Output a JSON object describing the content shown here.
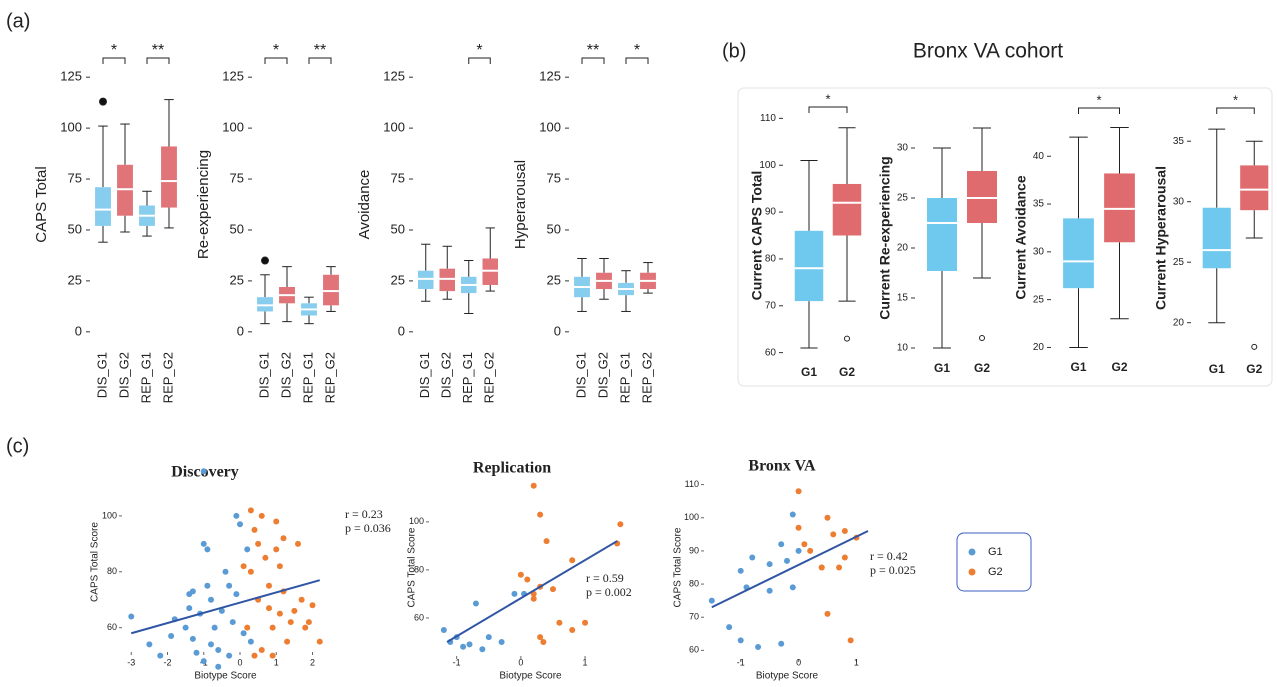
{
  "panels": [
    {
      "label": "(a)"
    },
    {
      "label": "(b)",
      "title": "Bronx VA cohort"
    },
    {
      "label": "(c)"
    }
  ],
  "chart_data": [
    {
      "type": "box",
      "ylabel": "CAPS Total",
      "categories": [
        "DIS_G1",
        "DIS_G2",
        "REP_G1",
        "REP_G2"
      ],
      "colors": [
        "#87cdee",
        "#e07478",
        "#87cdee",
        "#e07478"
      ],
      "boxes": [
        {
          "min": 44,
          "q1": 52,
          "median": 60,
          "q3": 71,
          "max": 101,
          "outliers": [
            113
          ]
        },
        {
          "min": 49,
          "q1": 57,
          "median": 70,
          "q3": 82,
          "max": 102,
          "outliers": []
        },
        {
          "min": 47,
          "q1": 52,
          "median": 57,
          "q3": 62,
          "max": 69,
          "outliers": []
        },
        {
          "min": 51,
          "q1": 61,
          "median": 74,
          "q3": 91,
          "max": 114,
          "outliers": []
        }
      ],
      "ylim": [
        -5,
        130
      ],
      "yticks": [
        0,
        25,
        50,
        75,
        100,
        125
      ],
      "brackets": [
        {
          "pair": [
            "DIS_G1",
            "DIS_G2"
          ],
          "label": "*"
        },
        {
          "pair": [
            "REP_G1",
            "REP_G2"
          ],
          "label": "**"
        }
      ]
    },
    {
      "type": "box",
      "ylabel": "Re-experiencing",
      "categories": [
        "DIS_G1",
        "DIS_G2",
        "REP_G1",
        "REP_G2"
      ],
      "colors": [
        "#87cdee",
        "#e07478",
        "#87cdee",
        "#e07478"
      ],
      "boxes": [
        {
          "min": 4,
          "q1": 10,
          "median": 13,
          "q3": 17,
          "max": 28,
          "outliers": [
            35
          ]
        },
        {
          "min": 5,
          "q1": 14,
          "median": 18,
          "q3": 22,
          "max": 32,
          "outliers": []
        },
        {
          "min": 4,
          "q1": 8,
          "median": 11,
          "q3": 14,
          "max": 17,
          "outliers": []
        },
        {
          "min": 10,
          "q1": 13,
          "median": 20,
          "q3": 28,
          "max": 32,
          "outliers": []
        }
      ],
      "ylim": [
        -5,
        130
      ],
      "yticks": [
        0,
        25,
        50,
        75,
        100,
        125
      ],
      "brackets": [
        {
          "pair": [
            "DIS_G1",
            "DIS_G2"
          ],
          "label": "*"
        },
        {
          "pair": [
            "REP_G1",
            "REP_G2"
          ],
          "label": "**"
        }
      ]
    },
    {
      "type": "box",
      "ylabel": "Avoidance",
      "categories": [
        "DIS_G1",
        "DIS_G2",
        "REP_G1",
        "REP_G2"
      ],
      "colors": [
        "#87cdee",
        "#e07478",
        "#87cdee",
        "#e07478"
      ],
      "boxes": [
        {
          "min": 15,
          "q1": 21,
          "median": 26,
          "q3": 30,
          "max": 43,
          "outliers": []
        },
        {
          "min": 16,
          "q1": 20,
          "median": 26,
          "q3": 31,
          "max": 42,
          "outliers": []
        },
        {
          "min": 9,
          "q1": 19,
          "median": 23,
          "q3": 27,
          "max": 35,
          "outliers": []
        },
        {
          "min": 20,
          "q1": 23,
          "median": 30,
          "q3": 36,
          "max": 51,
          "outliers": []
        }
      ],
      "ylim": [
        -5,
        130
      ],
      "yticks": [
        0,
        25,
        50,
        75,
        100,
        125
      ],
      "brackets": [
        {
          "pair": [
            "REP_G1",
            "REP_G2"
          ],
          "label": "*"
        }
      ]
    },
    {
      "type": "box",
      "ylabel": "Hyperarousal",
      "categories": [
        "DIS_G1",
        "DIS_G2",
        "REP_G1",
        "REP_G2"
      ],
      "colors": [
        "#87cdee",
        "#e07478",
        "#87cdee",
        "#e07478"
      ],
      "boxes": [
        {
          "min": 10,
          "q1": 17,
          "median": 22,
          "q3": 27,
          "max": 36,
          "outliers": []
        },
        {
          "min": 16,
          "q1": 21,
          "median": 25,
          "q3": 29,
          "max": 36,
          "outliers": []
        },
        {
          "min": 10,
          "q1": 18,
          "median": 21,
          "q3": 24,
          "max": 30,
          "outliers": []
        },
        {
          "min": 19,
          "q1": 21,
          "median": 25,
          "q3": 29,
          "max": 34,
          "outliers": []
        }
      ],
      "ylim": [
        -5,
        130
      ],
      "yticks": [
        0,
        25,
        50,
        75,
        100,
        125
      ],
      "brackets": [
        {
          "pair": [
            "DIS_G1",
            "DIS_G2"
          ],
          "label": "**"
        },
        {
          "pair": [
            "REP_G1",
            "REP_G2"
          ],
          "label": "*"
        }
      ]
    },
    {
      "type": "box",
      "ylabel": "Current CAPS Total",
      "categories": [
        "G1",
        "G2"
      ],
      "colors": [
        "#6fc8ee",
        "#e06b6f"
      ],
      "boxes": [
        {
          "min": 61,
          "q1": 71,
          "median": 78,
          "q3": 86,
          "max": 101,
          "outliers": []
        },
        {
          "min": 71,
          "q1": 85,
          "median": 92,
          "q3": 96,
          "max": 108,
          "outliers": [
            63
          ]
        }
      ],
      "ylim": [
        58,
        112
      ],
      "yticks": [
        60,
        70,
        80,
        90,
        100,
        110
      ],
      "brackets": [
        {
          "pair": [
            "G1",
            "G2"
          ],
          "label": "*"
        }
      ]
    },
    {
      "type": "box",
      "ylabel": "Current Re-experiencing",
      "categories": [
        "G1",
        "G2"
      ],
      "colors": [
        "#6fc8ee",
        "#e06b6f"
      ],
      "boxes": [
        {
          "min": 10,
          "q1": 17.7,
          "median": 22.5,
          "q3": 25,
          "max": 30,
          "outliers": []
        },
        {
          "min": 17,
          "q1": 22.5,
          "median": 25,
          "q3": 27.7,
          "max": 32,
          "outliers": [
            11
          ]
        }
      ],
      "ylim": [
        9,
        33
      ],
      "yticks": [
        10,
        15,
        20,
        25,
        30
      ],
      "brackets": []
    },
    {
      "type": "box",
      "ylabel": "Current Avoidance",
      "categories": [
        "G1",
        "G2"
      ],
      "colors": [
        "#6fc8ee",
        "#e06b6f"
      ],
      "boxes": [
        {
          "min": 20,
          "q1": 26.2,
          "median": 29,
          "q3": 33.5,
          "max": 42,
          "outliers": []
        },
        {
          "min": 23,
          "q1": 31,
          "median": 34.5,
          "q3": 38.2,
          "max": 43,
          "outliers": []
        }
      ],
      "ylim": [
        19,
        44
      ],
      "yticks": [
        20,
        25,
        30,
        35,
        40
      ],
      "brackets": [
        {
          "pair": [
            "G1",
            "G2"
          ],
          "label": "*"
        }
      ]
    },
    {
      "type": "box",
      "ylabel": "Current Hyperarousal",
      "categories": [
        "G1",
        "G2"
      ],
      "colors": [
        "#6fc8ee",
        "#e06b6f"
      ],
      "boxes": [
        {
          "min": 20,
          "q1": 24.5,
          "median": 26,
          "q3": 29.5,
          "max": 36,
          "outliers": []
        },
        {
          "min": 27,
          "q1": 29.3,
          "median": 31,
          "q3": 33,
          "max": 35,
          "outliers": [
            18
          ]
        }
      ],
      "ylim": [
        17,
        37
      ],
      "yticks": [
        20,
        25,
        30,
        35
      ],
      "brackets": [
        {
          "pair": [
            "G1",
            "G2"
          ],
          "label": "*"
        }
      ]
    },
    {
      "type": "scatter",
      "title": "Discovery",
      "xlabel": "Biotype Score",
      "ylabel": "CAPS Total Score",
      "xlim": [
        -3.2,
        2.4
      ],
      "xticks": [
        -3,
        -2,
        -1,
        0,
        1,
        2
      ],
      "ylim": [
        52,
        115
      ],
      "yticks": [
        60,
        80,
        100
      ],
      "series": [
        {
          "name": "G1",
          "color": "#5b9bd5",
          "x": [
            -3.0,
            -2.5,
            -2.2,
            -1.9,
            -1.8,
            -1.5,
            -1.4,
            -1.3,
            -1.3,
            -1.2,
            -1.1,
            -1.0,
            -1.0,
            -0.9,
            -0.9,
            -0.8,
            -0.7,
            -0.6,
            -0.5,
            -0.4,
            -0.3,
            -0.2,
            -0.1,
            0.0,
            0.1,
            0.2,
            -0.6,
            -1.0,
            -0.3,
            0.3,
            -1.4,
            -0.8,
            -0.1
          ],
          "values": [
            64,
            54,
            50,
            57,
            63,
            60,
            67,
            73,
            56,
            51,
            65,
            116,
            90,
            88,
            75,
            70,
            60,
            52,
            66,
            80,
            75,
            62,
            100,
            97,
            58,
            88,
            46,
            48,
            50,
            55,
            72,
            54,
            72
          ]
        },
        {
          "name": "G2",
          "color": "#ed7d31",
          "x": [
            0.1,
            0.3,
            0.3,
            0.4,
            0.5,
            0.5,
            0.6,
            0.7,
            0.8,
            0.8,
            0.9,
            1.0,
            1.0,
            1.1,
            1.1,
            1.2,
            1.3,
            1.4,
            1.5,
            1.6,
            1.7,
            1.8,
            1.9,
            2.0,
            2.2,
            0.4,
            0.6,
            0.9,
            1.2,
            0.2
          ],
          "values": [
            82,
            102,
            80,
            95,
            90,
            70,
            100,
            85,
            75,
            67,
            60,
            98,
            88,
            82,
            65,
            73,
            55,
            62,
            66,
            90,
            70,
            60,
            62,
            68,
            55,
            50,
            52,
            50,
            92,
            60
          ]
        }
      ],
      "fit": {
        "color": "#2f55a4",
        "x": [
          -3,
          2.2
        ],
        "values": [
          58,
          77
        ]
      },
      "annotations": [
        "r = 0.23",
        "p = 0.036"
      ]
    },
    {
      "type": "scatter",
      "title": "Replication",
      "xlabel": "Biotype Score",
      "ylabel": "CAPS Total Score",
      "xlim": [
        -1.4,
        1.7
      ],
      "xticks": [
        -1,
        0,
        1
      ],
      "ylim": [
        45,
        117
      ],
      "yticks": [
        60,
        80,
        100
      ],
      "series": [
        {
          "name": "G1",
          "color": "#5b9bd5",
          "x": [
            -1.2,
            -1.1,
            -1.0,
            -0.9,
            -0.8,
            -0.7,
            -0.6,
            -0.5,
            -0.3,
            -0.1,
            0.05
          ],
          "values": [
            55,
            50,
            52,
            48,
            49,
            66,
            47,
            52,
            50,
            70,
            70
          ]
        },
        {
          "name": "G2",
          "color": "#ed7d31",
          "x": [
            0.2,
            0.3,
            0.0,
            0.1,
            0.3,
            0.2,
            0.5,
            0.3,
            0.35,
            0.4,
            0.6,
            0.8,
            0.8,
            1.0,
            1.5,
            1.55,
            0.2
          ],
          "values": [
            115,
            103,
            78,
            76,
            73,
            70,
            72,
            52,
            50,
            92,
            58,
            84,
            55,
            58,
            91,
            99,
            68
          ]
        }
      ],
      "fit": {
        "color": "#2f55a4",
        "x": [
          -1.15,
          1.5
        ],
        "values": [
          50,
          92
        ]
      },
      "annotations": [
        "r = 0.59",
        "p = 0.002"
      ]
    },
    {
      "type": "scatter",
      "title": "Bronx VA",
      "xlabel": "Biotype Score",
      "ylabel": "CAPS Total Score",
      "xlim": [
        -1.6,
        1.2
      ],
      "xticks": [
        -1,
        0,
        1
      ],
      "ylim": [
        58,
        112
      ],
      "yticks": [
        60,
        70,
        80,
        90,
        100,
        110
      ],
      "series": [
        {
          "name": "G1",
          "color": "#5b9bd5",
          "x": [
            -1.5,
            -1.2,
            -1.0,
            -0.9,
            -1.0,
            -0.8,
            -0.7,
            -0.5,
            -0.5,
            -0.3,
            -0.3,
            -0.2,
            -0.1,
            -0.1,
            0.0
          ],
          "values": [
            75,
            67,
            84,
            79,
            63,
            88,
            61,
            86,
            78,
            92,
            62,
            87,
            79,
            101,
            90
          ]
        },
        {
          "name": "G2",
          "color": "#ed7d31",
          "x": [
            0.0,
            0.0,
            0.1,
            0.2,
            0.4,
            0.5,
            0.5,
            0.6,
            0.7,
            0.8,
            0.8,
            0.9,
            1.0,
            0.4
          ],
          "values": [
            108,
            97,
            92,
            90,
            85,
            71,
            100,
            95,
            85,
            96,
            88,
            63,
            94,
            85
          ]
        }
      ],
      "fit": {
        "color": "#2f55a4",
        "x": [
          -1.5,
          1.2
        ],
        "values": [
          73,
          96
        ]
      },
      "annotations": [
        "r = 0.42",
        "p = 0.025"
      ]
    }
  ]
}
